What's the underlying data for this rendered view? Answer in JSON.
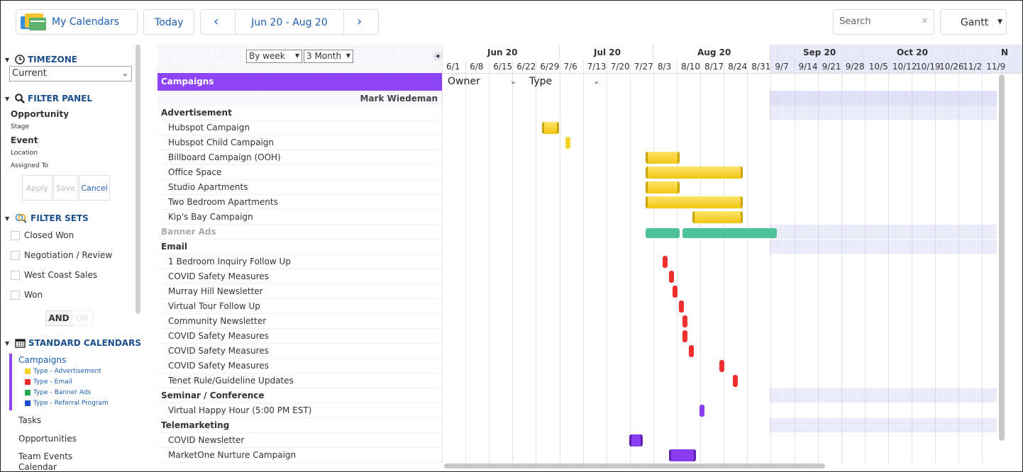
{
  "toolbar": {
    "my_calendars": "My Calendars",
    "today": "Today",
    "range": "Jun 20 - Aug 20",
    "search_placeholder": "Search",
    "view": "Gantt"
  },
  "sidebar": {
    "timezone_title": "TIMEZONE",
    "timezone_value": "Current",
    "filter_panel_title": "FILTER PANEL",
    "opportunity": "Opportunity",
    "stage": "Stage",
    "event": "Event",
    "location": "Location",
    "assigned_to": "Assigned To",
    "apply": "Apply",
    "save": "Save",
    "cancel": "Cancel",
    "filter_sets_title": "FILTER SETS",
    "filter_sets": [
      "Closed Won",
      "Negotiation / Review",
      "West Coast Sales",
      "Won"
    ],
    "and": "AND",
    "or": "OR",
    "standard_calendars_title": "STANDARD CALENDARS",
    "campaigns": "Campaigns",
    "legend": [
      {
        "label": "Type - Advertisement",
        "color": "#f5d328"
      },
      {
        "label": "Type - Email",
        "color": "#ea2b2b"
      },
      {
        "label": "Type - Banner Ads",
        "color": "#26a84f"
      },
      {
        "label": "Type - Referral Program",
        "color": "#1f4fd1"
      }
    ],
    "others": [
      "Tasks",
      "Opportunities",
      "Team Events",
      "Calendar"
    ]
  },
  "gantt": {
    "group_by": "By week",
    "span": "3 Month",
    "campaigns_header": "Campaigns",
    "owner_filter": "Owner",
    "type_filter": "Type",
    "owner_name": "Mark Wiedeman",
    "months": [
      "Jun 20",
      "Jul 20",
      "Aug 20",
      "Sep 20",
      "Oct 20",
      "N"
    ],
    "weeks": [
      "6/1",
      "6/8",
      "6/15",
      "6/22",
      "6/29",
      "7/6",
      "7/13",
      "7/20",
      "7/27",
      "8/3",
      "8/10",
      "8/17",
      "8/24",
      "8/31",
      "9/7",
      "9/14",
      "9/21",
      "9/28",
      "10/5",
      "10/12",
      "10/19",
      "10/26",
      "11/2",
      "11/9"
    ],
    "rows": [
      {
        "label": "Advertisement"
      },
      {
        "label": "Hubspot Campaign"
      },
      {
        "label": "Hubspot Child Campaign"
      },
      {
        "label": "Billboard Campaign (OOH)"
      },
      {
        "label": "Office Space"
      },
      {
        "label": "Studio Apartments"
      },
      {
        "label": "Two Bedroom Apartments"
      },
      {
        "label": "Kip's Bay Campaign"
      },
      {
        "label": "Banner Ads"
      },
      {
        "label": "Email"
      },
      {
        "label": "1 Bedroom Inquiry Follow Up"
      },
      {
        "label": "COVID Safety Measures"
      },
      {
        "label": "Murray Hill Newsletter"
      },
      {
        "label": "Virtual Tour Follow Up"
      },
      {
        "label": "Community Newsletter"
      },
      {
        "label": "COVID Safety Measures"
      },
      {
        "label": "COVID Safety Measures"
      },
      {
        "label": "COVID Safety Measures"
      },
      {
        "label": "Tenet Rule/Guideline Updates"
      },
      {
        "label": "Seminar / Conference"
      },
      {
        "label": "Virtual Happy Hour (5:00 PM EST)"
      },
      {
        "label": "Telemarketing"
      },
      {
        "label": "COVID Newsletter"
      },
      {
        "label": "MarketOne Nurture Campaign"
      }
    ]
  }
}
